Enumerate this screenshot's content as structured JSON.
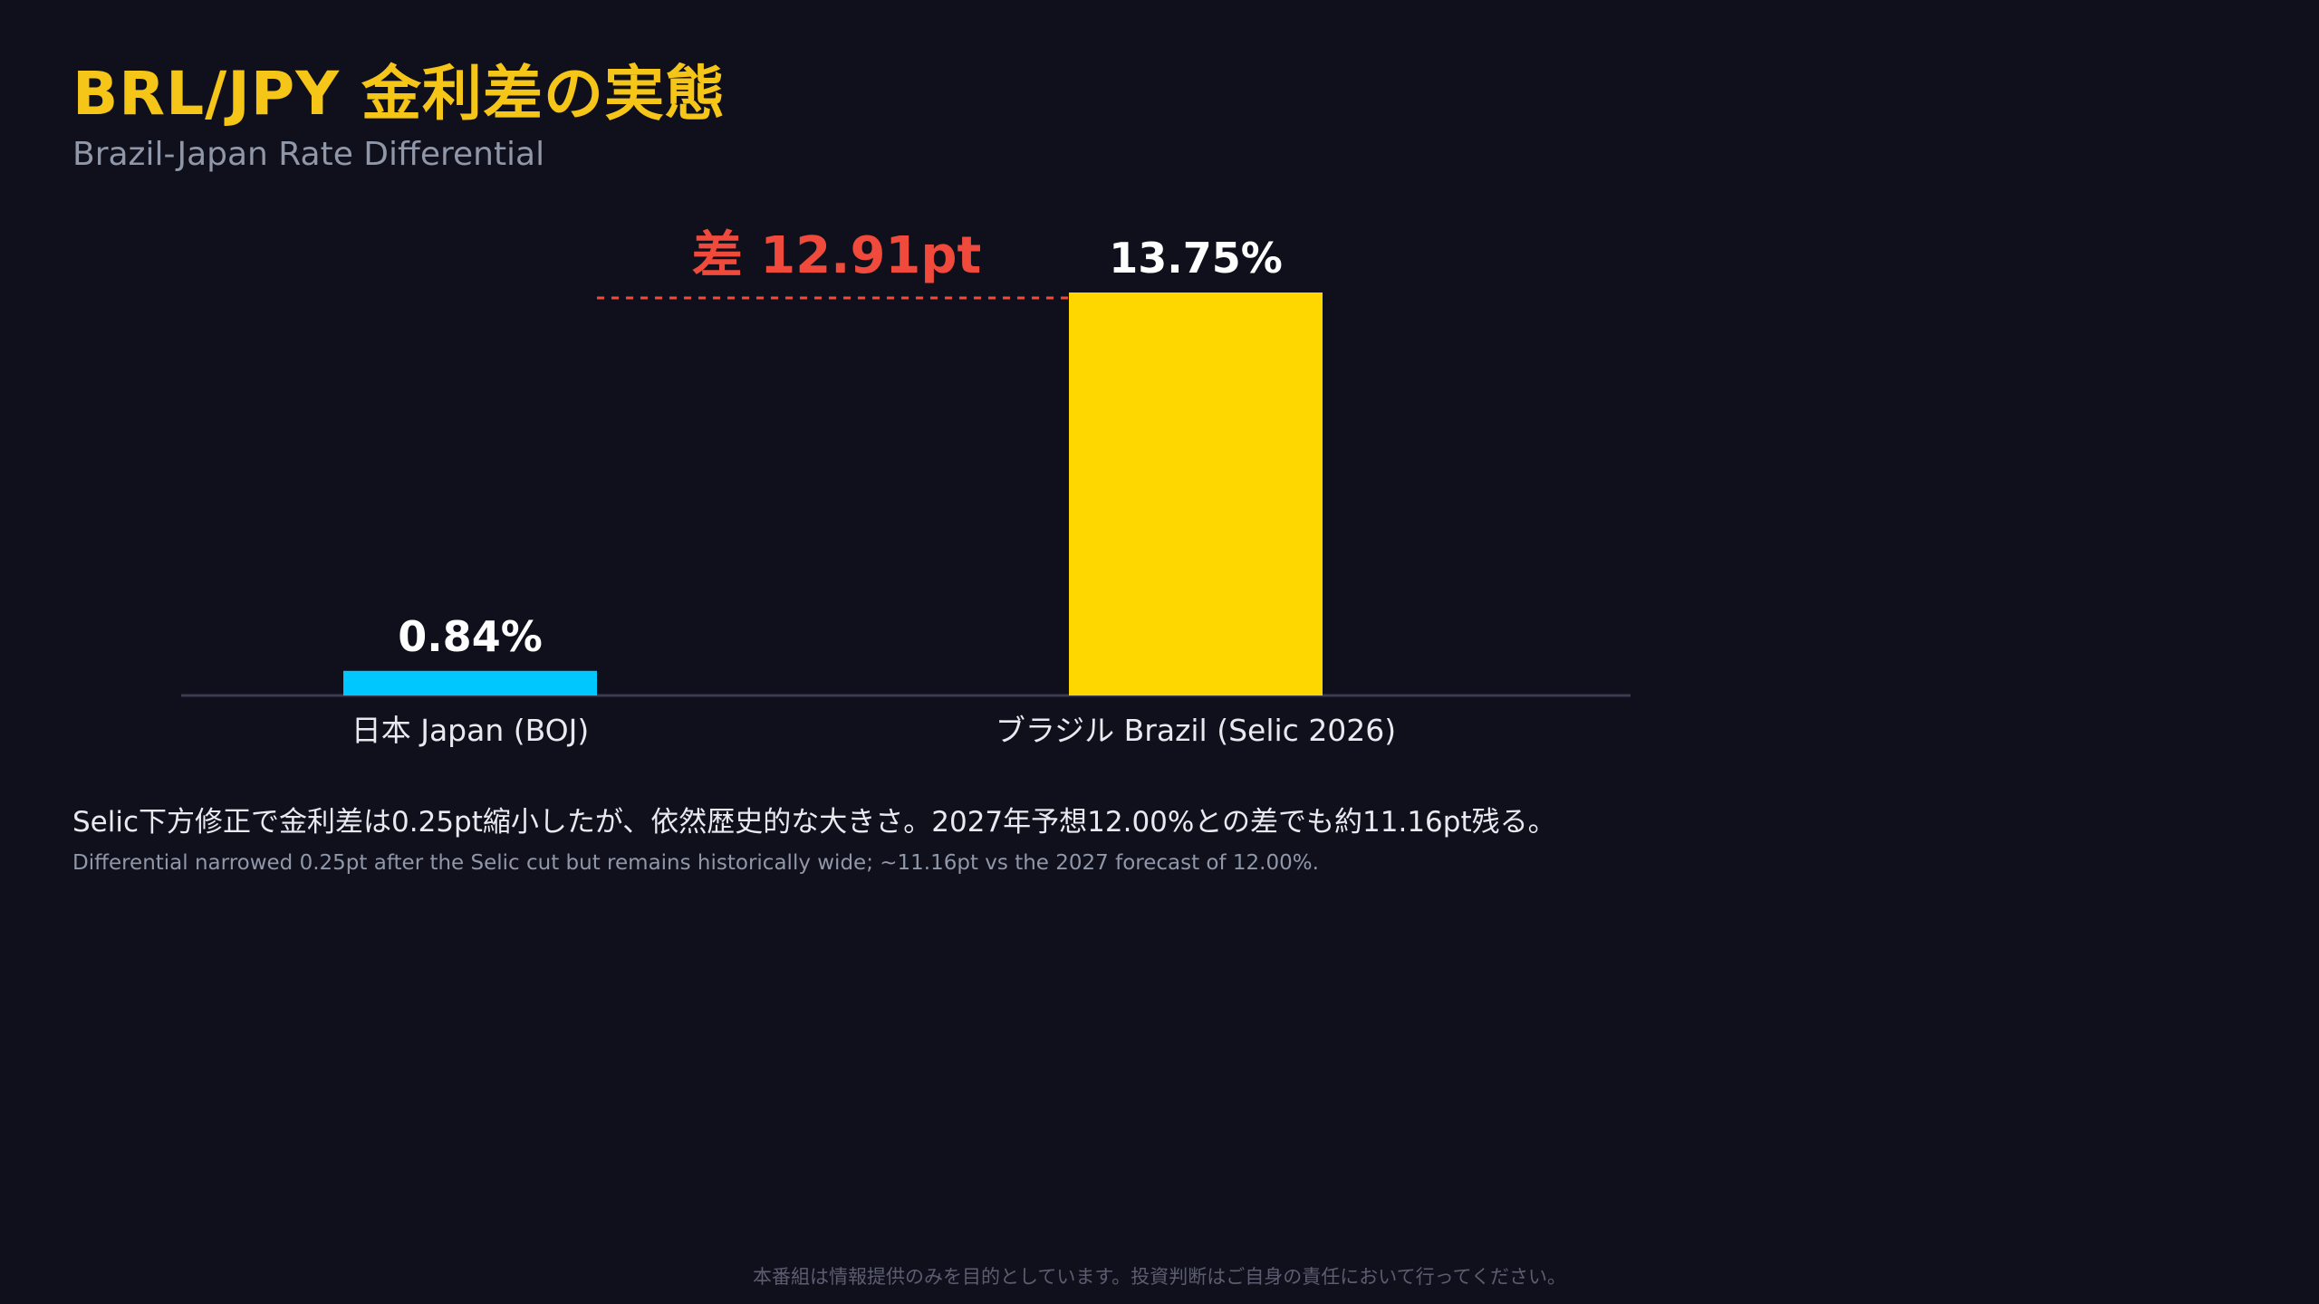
{
  "header": {
    "title": "BRL/JPY 金利差の実態",
    "subtitle": "Brazil-Japan Rate Differential"
  },
  "chart_data": {
    "type": "bar",
    "categories": [
      "日本 Japan (BOJ)",
      "ブラジル Brazil (Selic 2026)"
    ],
    "values": [
      0.84,
      13.75
    ],
    "value_labels": [
      "0.84%",
      "13.75%"
    ],
    "colors": [
      "#00c8ff",
      "#ffd700"
    ],
    "unit": "%",
    "ylim": [
      0,
      13.75
    ],
    "grid": false,
    "annotation": {
      "label": "差 12.91pt",
      "value": 12.91,
      "color": "#f04a3c",
      "style": "dashed"
    }
  },
  "notes": {
    "jp": "Selic下方修正で金利差は0.25pt縮小したが、依然歴史的な大きさ。2027年予想12.00%との差でも約11.16pt残る。",
    "en": "Differential narrowed 0.25pt after the Selic cut but remains historically wide; ~11.16pt vs the 2027 forecast of 12.00%."
  },
  "footer": {
    "disclaimer": "本番組は情報提供のみを目的としています。投資判断はご自身の責任において行ってください。"
  },
  "colors": {
    "background": "#10101c",
    "title": "#f5c518",
    "axis": "#3a3a52"
  }
}
